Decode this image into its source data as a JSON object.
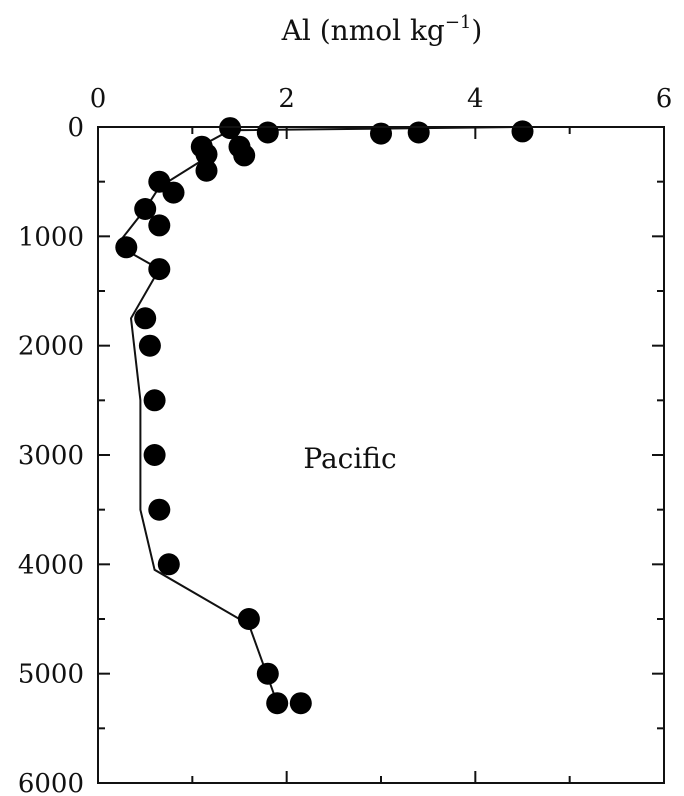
{
  "chart_data": {
    "type": "scatter",
    "title": "Al (nmol kg",
    "title_superscript": "−1",
    "title_close": ")",
    "annotation": "Pacific",
    "x_axis": {
      "position": "top",
      "range": [
        0,
        6
      ],
      "ticks": [
        0,
        2,
        4,
        6
      ],
      "tick_labels": [
        "0",
        "2",
        "4",
        "6"
      ],
      "minor_step": 1
    },
    "y_axis": {
      "inverted": true,
      "range": [
        0,
        6000
      ],
      "ticks": [
        0,
        1000,
        2000,
        3000,
        4000,
        5000,
        6000
      ],
      "tick_labels": [
        "0",
        "1000",
        "2000",
        "3000",
        "4000",
        "5000",
        "6000"
      ],
      "minor_step": 500
    },
    "grid": false,
    "series": [
      {
        "kind": "points",
        "points": [
          {
            "x": 1.4,
            "y": 10
          },
          {
            "x": 1.8,
            "y": 50
          },
          {
            "x": 3.0,
            "y": 60
          },
          {
            "x": 3.4,
            "y": 50
          },
          {
            "x": 4.5,
            "y": 40
          },
          {
            "x": 1.1,
            "y": 180
          },
          {
            "x": 1.5,
            "y": 180
          },
          {
            "x": 1.15,
            "y": 250
          },
          {
            "x": 1.55,
            "y": 260
          },
          {
            "x": 1.15,
            "y": 400
          },
          {
            "x": 0.65,
            "y": 500
          },
          {
            "x": 0.8,
            "y": 600
          },
          {
            "x": 0.5,
            "y": 750
          },
          {
            "x": 0.65,
            "y": 900
          },
          {
            "x": 0.3,
            "y": 1100
          },
          {
            "x": 0.65,
            "y": 1300
          },
          {
            "x": 0.5,
            "y": 1750
          },
          {
            "x": 0.55,
            "y": 2000
          },
          {
            "x": 0.6,
            "y": 2500
          },
          {
            "x": 0.6,
            "y": 3000
          },
          {
            "x": 0.65,
            "y": 3500
          },
          {
            "x": 0.75,
            "y": 4000
          },
          {
            "x": 1.6,
            "y": 4500
          },
          {
            "x": 1.8,
            "y": 5000
          },
          {
            "x": 1.9,
            "y": 5270
          },
          {
            "x": 2.15,
            "y": 5270
          }
        ]
      },
      {
        "kind": "line",
        "points": [
          {
            "x": 4.5,
            "y": 0
          },
          {
            "x": 1.4,
            "y": 30
          },
          {
            "x": 1.1,
            "y": 170
          },
          {
            "x": 1.15,
            "y": 280
          },
          {
            "x": 0.65,
            "y": 550
          },
          {
            "x": 0.5,
            "y": 750
          },
          {
            "x": 0.2,
            "y": 1080
          },
          {
            "x": 0.65,
            "y": 1300
          },
          {
            "x": 0.35,
            "y": 1750
          },
          {
            "x": 0.45,
            "y": 2500
          },
          {
            "x": 0.45,
            "y": 3500
          },
          {
            "x": 0.6,
            "y": 4050
          },
          {
            "x": 1.6,
            "y": 4550
          },
          {
            "x": 1.9,
            "y": 5270
          }
        ]
      }
    ]
  }
}
